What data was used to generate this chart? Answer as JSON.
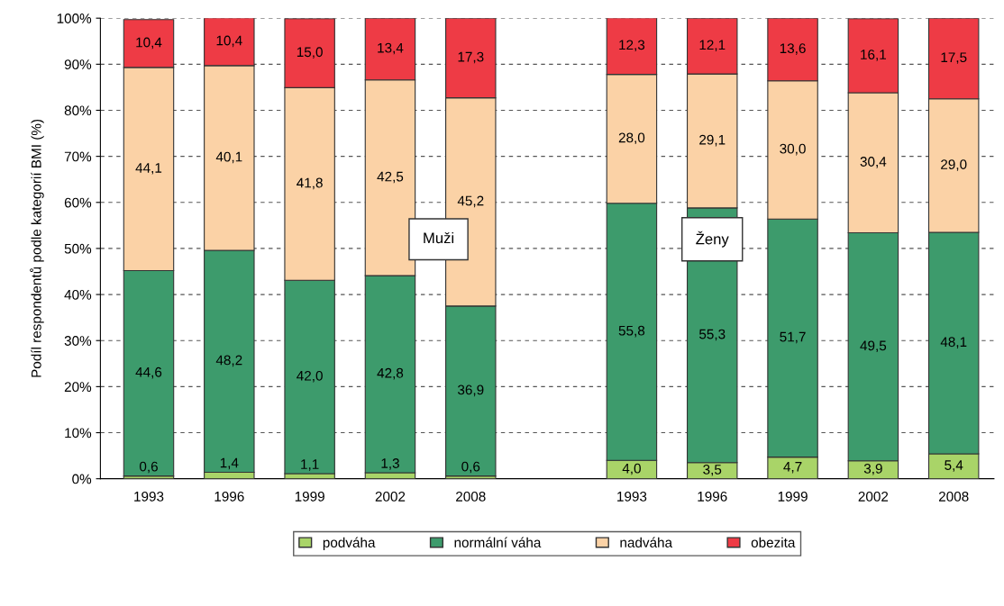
{
  "chart_data": {
    "type": "bar",
    "stacked": true,
    "ylabel": "Podíl respondentů podle kategorií BMI (%)",
    "categories": [
      "1993",
      "1996",
      "1999",
      "2002",
      "2008",
      null,
      "1993",
      "1996",
      "1999",
      "2002",
      "2008"
    ],
    "series": [
      {
        "name": "podváha",
        "color": "#a9d468",
        "values": [
          0.6,
          1.4,
          1.1,
          1.3,
          0.6,
          null,
          4.0,
          3.5,
          4.7,
          3.9,
          5.4
        ],
        "value_labels": [
          "0,6",
          "1,4",
          "1,1",
          "1,3",
          "0,6",
          null,
          "4,0",
          "3,5",
          "4,7",
          "3,9",
          "5,4"
        ]
      },
      {
        "name": "normální váha",
        "color": "#3d9b6c",
        "values": [
          44.6,
          48.2,
          42.0,
          42.8,
          36.9,
          null,
          55.8,
          55.3,
          51.7,
          49.5,
          48.1
        ],
        "value_labels": [
          "44,6",
          "48,2",
          "42,0",
          "42,8",
          "36,9",
          null,
          "55,8",
          "55,3",
          "51,7",
          "49,5",
          "48,1"
        ]
      },
      {
        "name": "nadváha",
        "color": "#fbd2a6",
        "values": [
          44.1,
          40.1,
          41.8,
          42.5,
          45.2,
          null,
          28.0,
          29.1,
          30.0,
          30.4,
          29.0
        ],
        "value_labels": [
          "44,1",
          "40,1",
          "41,8",
          "42,5",
          "45,2",
          null,
          "28,0",
          "29,1",
          "30,0",
          "30,4",
          "29,0"
        ]
      },
      {
        "name": "obezita",
        "color": "#ee3b45",
        "values": [
          10.4,
          10.4,
          15.0,
          13.4,
          17.3,
          null,
          12.3,
          12.1,
          13.6,
          16.1,
          17.5
        ],
        "value_labels": [
          "10,4",
          "10,4",
          "15,0",
          "13,4",
          "17,3",
          null,
          "12,3",
          "12,1",
          "13,6",
          "16,1",
          "17,5"
        ]
      }
    ],
    "ylim": [
      0,
      100
    ],
    "yticks": [
      {
        "value": 0,
        "label": "0%"
      },
      {
        "value": 10,
        "label": "10%"
      },
      {
        "value": 20,
        "label": "20%"
      },
      {
        "value": 30,
        "label": "30%"
      },
      {
        "value": 40,
        "label": "40%"
      },
      {
        "value": 50,
        "label": "50%"
      },
      {
        "value": 60,
        "label": "60%"
      },
      {
        "value": 70,
        "label": "70%"
      },
      {
        "value": 80,
        "label": "80%"
      },
      {
        "value": 90,
        "label": "90%"
      },
      {
        "value": 100,
        "label": "100%"
      }
    ],
    "grid": "y",
    "legend": "bottom",
    "annotations": [
      "Muži",
      "Ženy"
    ]
  }
}
